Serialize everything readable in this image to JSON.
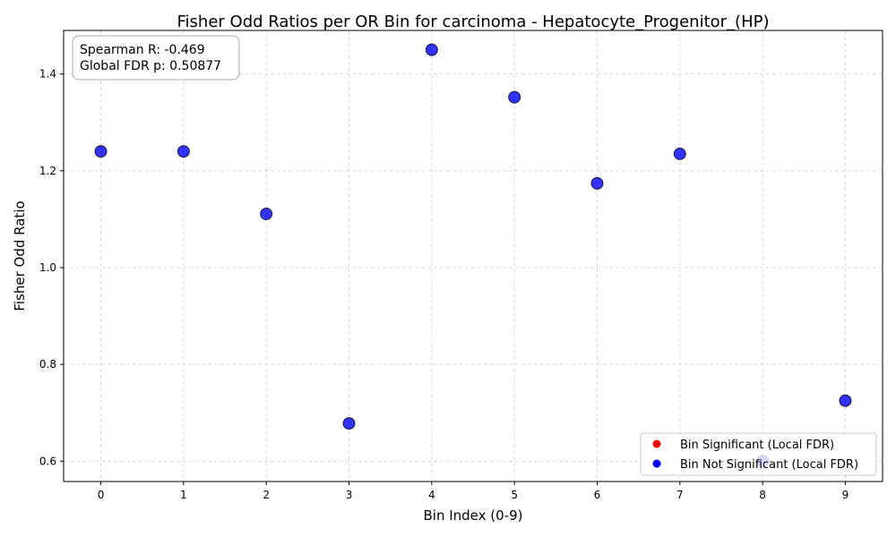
{
  "chart_data": {
    "type": "scatter",
    "title": "Fisher Odd Ratios per OR Bin for carcinoma - Hepatocyte_Progenitor_(HP)",
    "xlabel": "Bin Index (0-9)",
    "ylabel": "Fisher Odd Ratio",
    "xlim": [
      -0.45,
      9.45
    ],
    "ylim": [
      0.558,
      1.49
    ],
    "xticks": [
      0,
      1,
      2,
      3,
      4,
      5,
      6,
      7,
      8,
      9
    ],
    "yticks": [
      0.6,
      0.8,
      1.0,
      1.2,
      1.4
    ],
    "ytick_labels": [
      "0.6",
      "0.8",
      "1.0",
      "1.2",
      "1.4"
    ],
    "grid": true,
    "series": [
      {
        "name": "Bin Significant (Local FDR)",
        "color": "#ff0000",
        "x": [],
        "y": []
      },
      {
        "name": "Bin Not Significant (Local FDR)",
        "color": "#0000ff",
        "x": [
          0,
          1,
          2,
          3,
          4,
          5,
          6,
          7,
          8,
          9
        ],
        "y": [
          1.24,
          1.24,
          1.111,
          0.678,
          1.45,
          1.352,
          1.174,
          1.235,
          0.6,
          0.725
        ]
      }
    ],
    "annotation": {
      "spearman_label": "Spearman R: -0.469",
      "fdr_label": "Global FDR p: 0.50877"
    },
    "legend_placement": "lower-right"
  }
}
